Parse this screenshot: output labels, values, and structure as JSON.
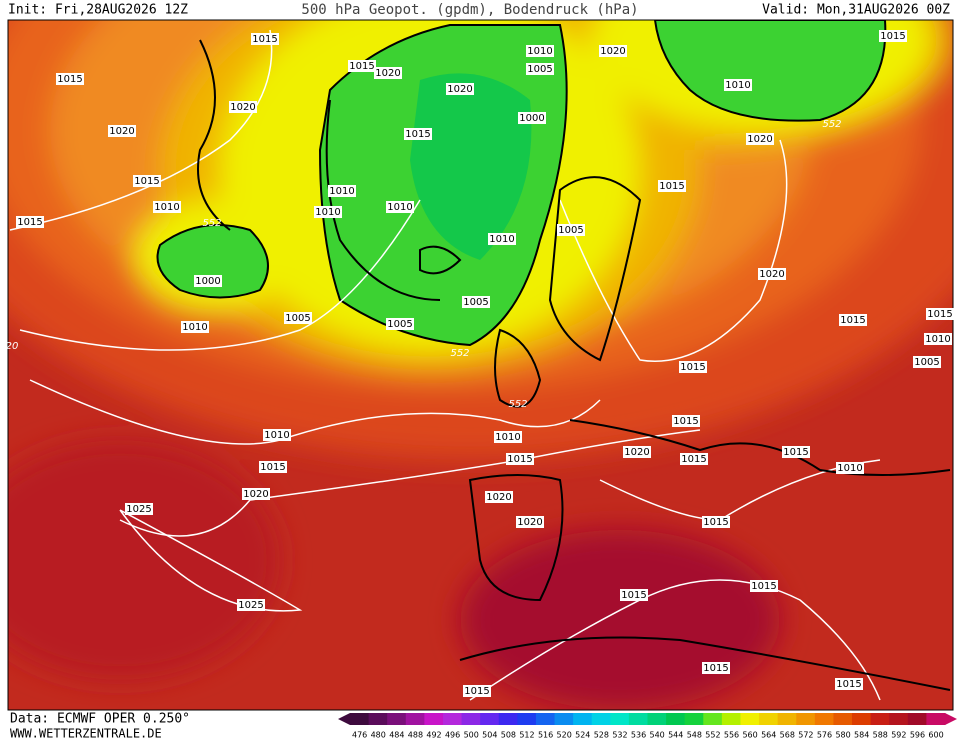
{
  "header": {
    "init": "Init: Fri,28AUG2026 12Z",
    "title": "500 hPa Geopot. (gpdm), Bodendruck (hPa)",
    "valid": "Valid: Mon,31AUG2026 00Z"
  },
  "footer": {
    "data": "Data: ECMWF OPER 0.250°",
    "site": "WWW.WETTERZENTRALE.DE"
  },
  "map": {
    "labels": [
      "1015",
      "1015",
      "1020",
      "1020",
      "1015",
      "1010",
      "1015",
      "552",
      "1000",
      "1010",
      "1005",
      "1015",
      "1020",
      "1020",
      "1015",
      "1010",
      "1010",
      "1010",
      "1010",
      "1005",
      "1000",
      "1010",
      "1005",
      "1005",
      "552",
      "1005",
      "1020",
      "1015",
      "1010",
      "552",
      "1020",
      "1015",
      "1020",
      "1015",
      "1015",
      "1010",
      "1005",
      "20",
      "1015",
      "552",
      "1010",
      "1010",
      "1015",
      "1015",
      "1015",
      "1020",
      "1015",
      "1015",
      "1010",
      "1020",
      "1020",
      "1020",
      "1025",
      "1015",
      "1025",
      "1015",
      "1015",
      "1015",
      "1015",
      "1015"
    ]
  },
  "scale": {
    "values": [
      476,
      480,
      484,
      488,
      492,
      496,
      500,
      504,
      508,
      512,
      516,
      520,
      524,
      528,
      532,
      536,
      540,
      544,
      548,
      552,
      556,
      560,
      564,
      568,
      572,
      576,
      580,
      584,
      588,
      592,
      596,
      600
    ],
    "colors": [
      "#3d0a3d",
      "#5a0c5a",
      "#7a0f7a",
      "#a012a0",
      "#c814c8",
      "#b428dc",
      "#8c28e6",
      "#6428f0",
      "#3c28f0",
      "#1e3cf0",
      "#1464f0",
      "#0a8cf0",
      "#00b4f0",
      "#00d2e6",
      "#00e6c8",
      "#00dca0",
      "#00d278",
      "#00c850",
      "#14d23c",
      "#64e61e",
      "#b4f000",
      "#f0f000",
      "#f0d200",
      "#f0b400",
      "#f09600",
      "#f07800",
      "#e65a00",
      "#dc3c00",
      "#c81e14",
      "#b4141e",
      "#a00a28",
      "#c80a64"
    ]
  }
}
